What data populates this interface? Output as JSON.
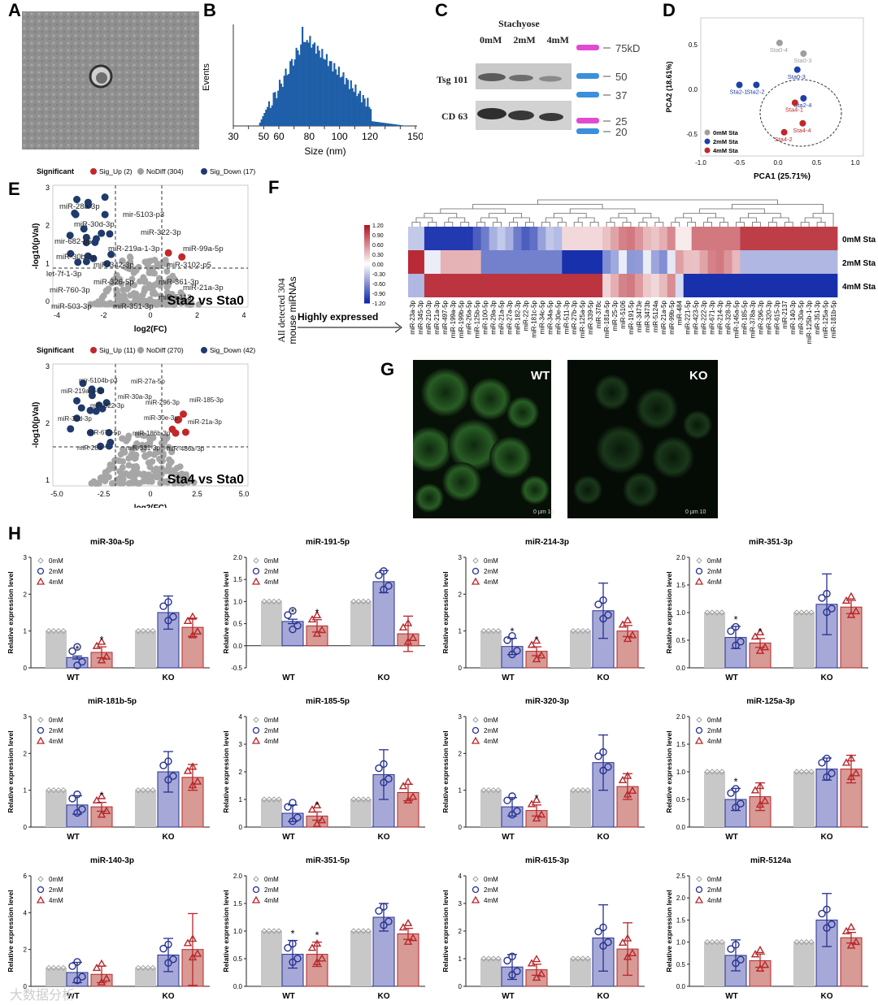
{
  "panel_letters": [
    "A",
    "B",
    "C",
    "D",
    "E",
    "F",
    "G",
    "H"
  ],
  "panelB": {
    "ylabel": "Events",
    "xlabel": "Size (nm)",
    "xticks": [
      "30",
      "40",
      "50",
      "60",
      "70",
      "80",
      "90",
      "100",
      "110",
      "120",
      "130",
      "140",
      "150"
    ],
    "xlabels_shown": [
      "30",
      "50",
      "60",
      "80",
      "100",
      "120",
      "150"
    ],
    "color": "#1f5fa8"
  },
  "panelC": {
    "title": "Stachyose",
    "columns": [
      "0mM",
      "2mM",
      "4mM"
    ],
    "rows": [
      "Tsg 101",
      "CD 63"
    ],
    "markers": [
      "75kD",
      "50",
      "37",
      "25",
      "20"
    ]
  },
  "panelD": {
    "ylabel": "PCA2 (18.61%)",
    "xlabel": "PCA1 (25.71%)",
    "xticks": [
      "-1.0",
      "-0.5",
      "0.0",
      "0.5",
      "1.0"
    ],
    "yticks": [
      "0.5",
      "0.0",
      "-0.5"
    ],
    "legend": [
      "0mM Sta",
      "2mM Sta",
      "4mM Sta"
    ],
    "colors": [
      "#9e9e9e",
      "#1f3fa8",
      "#c0282a"
    ],
    "points": [
      {
        "label": "Sta0-4",
        "x": 0.02,
        "y": 0.52,
        "g": 0
      },
      {
        "label": "Sta0-3",
        "x": 0.33,
        "y": 0.4,
        "g": 0
      },
      {
        "label": "Sta0-3",
        "x": 0.25,
        "y": 0.22,
        "g": 1
      },
      {
        "label": "Sta2-1",
        "x": -0.5,
        "y": 0.05,
        "g": 1
      },
      {
        "label": "Sta2-2",
        "x": -0.28,
        "y": 0.05,
        "g": 1
      },
      {
        "label": "Sta2-4",
        "x": 0.33,
        "y": -0.1,
        "g": 1
      },
      {
        "label": "Sta4-1",
        "x": 0.22,
        "y": -0.15,
        "g": 2
      },
      {
        "label": "Sta4-4",
        "x": 0.32,
        "y": -0.38,
        "g": 2
      },
      {
        "label": "Sta4-2",
        "x": 0.08,
        "y": -0.48,
        "g": 2
      }
    ]
  },
  "panelE": {
    "legend_title": "Significant",
    "top": {
      "legend": [
        "Sig_Up (2)",
        "NoDiff (304)",
        "Sig_Down (17)"
      ],
      "title": "Sta2 vs Sta0",
      "ylabel": "-log10(pVal)",
      "xlabel": "log2(FC)",
      "xticks": [
        "-4",
        "-2",
        "0",
        "2",
        "4"
      ],
      "yticks": [
        "0",
        "1",
        "2",
        "3"
      ],
      "labels": [
        "miR-28a-3p",
        "mir-5103-p3",
        "miR-30d-3p",
        "miR-322-3p",
        "mir-682-p5",
        "miR-219a-1-3p",
        "miR-99a-5p",
        "miR-30b-3p",
        "miR-3102-p5",
        "let-7f-1-3p",
        "miR-342-3p",
        "miR-760-3p",
        "miR-326-5p",
        "miR-361-3p",
        "miR-21a-3p",
        "miR-5113",
        "miR-503-3p",
        "miR-351-3p"
      ]
    },
    "bottom": {
      "legend": [
        "Sig_Up (11)",
        "NoDiff (270)",
        "Sig_Down (42)"
      ],
      "title": "Sta4 vs Sta0",
      "ylabel": "-log10(pVal)",
      "xlabel": "log2(FC)",
      "xticks": [
        "-5.0",
        "-2.5",
        "0",
        "2.5",
        "5.0"
      ],
      "yticks": [
        "1",
        "2",
        "3"
      ],
      "labels": [
        "mir-5104b-p3",
        "miR-27a-5p",
        "miR-219a-1-3p",
        "miR-30a-3p",
        "miR-185-3p",
        "miR-322-3p",
        "miR-296-3p",
        "miR-30d-3p",
        "miR-30e-3p",
        "miR-21a-3p",
        "miR-671-5p",
        "miR-186b-3p",
        "miR-28a",
        "miR-331-3p",
        "miR-486a-3p"
      ]
    }
  },
  "panelF": {
    "colorbar": [
      "1.20",
      "0.90",
      "0.60",
      "0.30",
      "0.00",
      "-0.30",
      "-0.60",
      "-0.90",
      "-1.20"
    ],
    "side_label_line1": "All detected 304",
    "side_label_line2": "mouse miRNAs",
    "arrow_label": "Highly expressed",
    "rows": [
      "0mM Sta",
      "2mM Sta",
      "4mM Sta"
    ],
    "columns": [
      "miR-23a-3p",
      "miR-345-3p",
      "miR-210-3p",
      "miR-21a-3p",
      "miR-497-5p",
      "miR-199a-3p",
      "miR-199b-5p",
      "miR-26a-5p",
      "miR-125b-5p",
      "miR-100-5p",
      "miR-29a-3p",
      "miR-21a-5p",
      "miR-27a-3p",
      "miR-182-3p",
      "miR-22-3p",
      "miR-181c-5p",
      "miR-34c-5p",
      "miR-34a-5p",
      "miR-30e-5p",
      "miR-511-3p",
      "miR-27b-3p",
      "miR-125a-5p",
      "miR-339-5p",
      "miR-378c",
      "miR-181a-5p",
      "miR-25-3p",
      "miR-5106",
      "miR-191-5p",
      "miR-3473e",
      "miR-3473b",
      "miR-5124a",
      "miR-21a-5p",
      "miR-99b-5p",
      "miR-484",
      "miR-221-5p",
      "miR-423-5p",
      "miR-222-3p",
      "miR-671-3p",
      "miR-214-3p",
      "miR-328-3p",
      "miR-145a-5p",
      "miR-185-5p",
      "miR-378a-3p",
      "miR-296-3p",
      "miR-320-3p",
      "miR-615-3p",
      "miR-2137",
      "miR-140-3p",
      "miR-30a-5p",
      "miR-125b-1-3p",
      "miR-351-3p",
      "miR-125a-5p",
      "miR-181b-5p"
    ]
  },
  "panelG": {
    "left": "WT",
    "right": "KO",
    "scale": "0 µm 10"
  },
  "panelH": {
    "ylabel": "Relative expression level",
    "legend": [
      "0mM",
      "2mM",
      "4mM"
    ],
    "groups": [
      "WT",
      "KO"
    ],
    "colors": {
      "c0": "#c8c8c8",
      "c2": "#a6a9d8",
      "c4": "#d79a95",
      "m0": "#a0a0a0",
      "m2": "#27318f",
      "m4": "#b8262b"
    },
    "charts": [
      {
        "title": "miR-30a-5p",
        "yticks": [
          "0",
          "1",
          "2",
          "3"
        ],
        "ymax": 3,
        "ymin": 0,
        "values": [
          1,
          0.28,
          0.42,
          1,
          1.5,
          1.1
        ],
        "err": [
          0,
          0.04,
          0.15,
          0,
          0.45,
          0.25
        ],
        "stars": [
          1,
          2
        ]
      },
      {
        "title": "miR-191-5p",
        "yticks": [
          "-0.5",
          "0.0",
          "0.5",
          "1.0",
          "1.5",
          "2.0"
        ],
        "ymax": 2.0,
        "ymin": -0.5,
        "values": [
          1,
          0.55,
          0.45,
          1,
          1.45,
          0.27
        ],
        "err": [
          0,
          0.05,
          0.14,
          0,
          0.25,
          0.4
        ],
        "stars": [
          1,
          2
        ]
      },
      {
        "title": "miR-214-3p",
        "yticks": [
          "0",
          "1",
          "2",
          "3"
        ],
        "ymax": 3,
        "ymin": 0,
        "values": [
          1,
          0.58,
          0.45,
          1,
          1.55,
          1.0
        ],
        "err": [
          0,
          0.22,
          0.12,
          0,
          0.75,
          0.15
        ],
        "stars": [
          1,
          2
        ]
      },
      {
        "title": "miR-351-3p",
        "yticks": [
          "0.0",
          "0.5",
          "1.0",
          "1.5",
          "2.0"
        ],
        "ymax": 2.0,
        "ymin": 0,
        "values": [
          1,
          0.55,
          0.45,
          1,
          1.15,
          1.1
        ],
        "err": [
          0,
          0.2,
          0.08,
          0,
          0.55,
          0.12
        ],
        "stars": [
          1,
          2
        ]
      },
      {
        "title": "miR-181b-5p",
        "yticks": [
          "0",
          "1",
          "2",
          "3"
        ],
        "ymax": 3,
        "ymin": 0,
        "values": [
          1,
          0.6,
          0.55,
          1,
          1.5,
          1.35
        ],
        "err": [
          0,
          0.25,
          0.12,
          0,
          0.55,
          0.35
        ],
        "stars": [
          2
        ]
      },
      {
        "title": "miR-185-5p",
        "yticks": [
          "0",
          "1",
          "2",
          "3",
          "4"
        ],
        "ymax": 4,
        "ymin": 0,
        "values": [
          1,
          0.5,
          0.4,
          1,
          1.9,
          1.25
        ],
        "err": [
          0,
          0.3,
          0.15,
          0,
          0.9,
          0.3
        ],
        "stars": [
          2
        ]
      },
      {
        "title": "miR-320-3p",
        "yticks": [
          "0",
          "1",
          "2",
          "3"
        ],
        "ymax": 3,
        "ymin": 0,
        "values": [
          1,
          0.55,
          0.45,
          1,
          1.75,
          1.1
        ],
        "err": [
          0,
          0.25,
          0.15,
          0,
          0.75,
          0.35
        ],
        "stars": [
          2
        ]
      },
      {
        "title": "miR-125a-3p",
        "yticks": [
          "0.0",
          "0.5",
          "1.0",
          "1.5",
          "2.0"
        ],
        "ymax": 2.0,
        "ymin": 0,
        "values": [
          1,
          0.5,
          0.55,
          1,
          1.05,
          1.05
        ],
        "err": [
          0,
          0.2,
          0.25,
          0,
          0.2,
          0.25
        ],
        "stars": [
          1
        ]
      },
      {
        "title": "miR-140-3p",
        "yticks": [
          "0",
          "2",
          "4",
          "6"
        ],
        "ymax": 6,
        "ymin": 0,
        "values": [
          1,
          0.75,
          0.65,
          1,
          1.7,
          2.0
        ],
        "err": [
          0,
          0.55,
          0.45,
          0,
          0.9,
          1.95
        ],
        "stars": []
      },
      {
        "title": "miR-351-5p",
        "yticks": [
          "0.0",
          "0.5",
          "1.0",
          "1.5",
          "2.0"
        ],
        "ymax": 2.0,
        "ymin": 0,
        "values": [
          1,
          0.58,
          0.58,
          1,
          1.25,
          0.95
        ],
        "err": [
          0,
          0.25,
          0.22,
          0,
          0.25,
          0.1
        ],
        "stars": [
          1,
          2
        ]
      },
      {
        "title": "miR-615-3p",
        "yticks": [
          "0",
          "1",
          "2",
          "3",
          "4"
        ],
        "ymax": 4,
        "ymin": 0,
        "values": [
          1,
          0.7,
          0.6,
          1,
          1.75,
          1.35
        ],
        "err": [
          0,
          0.45,
          0.2,
          0,
          1.2,
          0.95
        ],
        "stars": []
      },
      {
        "title": "miR-5124a",
        "yticks": [
          "0.0",
          "0.5",
          "1.0",
          "1.5",
          "2.0",
          "2.5"
        ],
        "ymax": 2.5,
        "ymin": 0,
        "values": [
          1,
          0.7,
          0.58,
          1,
          1.5,
          1.1
        ],
        "err": [
          0,
          0.35,
          0.15,
          0,
          0.6,
          0.12
        ],
        "stars": []
      }
    ]
  },
  "watermark": "大数据分析"
}
